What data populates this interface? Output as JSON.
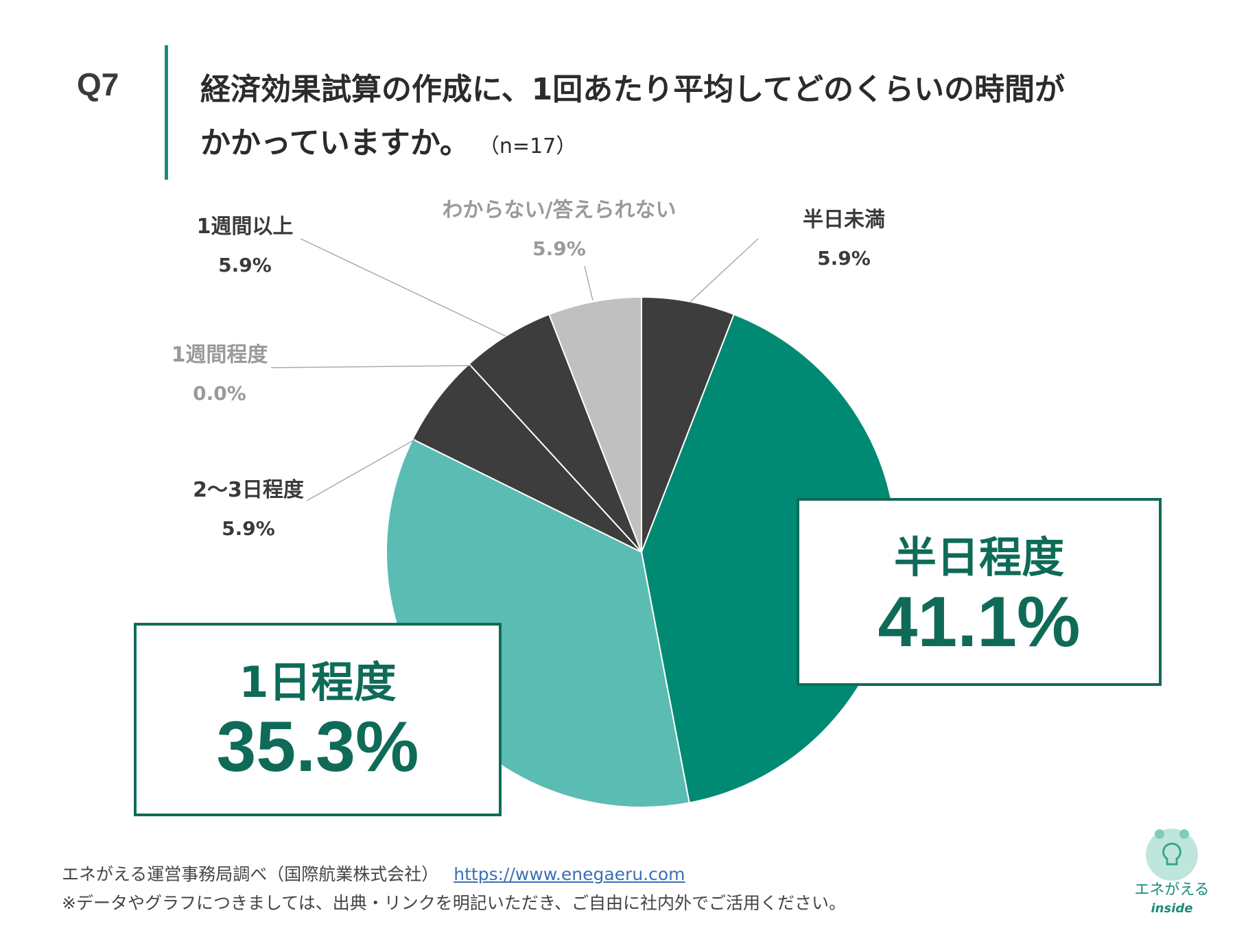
{
  "header": {
    "question_number": "Q7",
    "title_line1": "経済効果試算の作成に、1回あたり平均してどのくらいの時間が",
    "title_line2": "かかっていますか。",
    "sample_size": "（n=17）"
  },
  "colors": {
    "accent": "#1a8c78",
    "dark_green": "#0f6b58",
    "slice_dark": "#3d3d3d",
    "slice_light_gray": "#c0c0c0",
    "slice_green": "#008a73",
    "slice_teal": "#5bbcb3"
  },
  "chart_data": {
    "type": "pie",
    "title": "経済効果試算の作成に、1回あたり平均してどのくらいの時間がかかっていますか。",
    "start": "12 o'clock, clockwise",
    "slices": [
      {
        "key": "half_day_under",
        "label": "半日未満",
        "value": 5.9,
        "value_label": "5.9%",
        "color": "#3d3d3d",
        "label_style": "dark"
      },
      {
        "key": "half_day",
        "label": "半日程度",
        "value": 41.1,
        "value_label": "41.1%",
        "color": "#008a73",
        "label_style": "boxed"
      },
      {
        "key": "one_day",
        "label": "1日程度",
        "value": 35.3,
        "value_label": "35.3%",
        "color": "#5bbcb3",
        "label_style": "boxed"
      },
      {
        "key": "two_three_days",
        "label": "2～3日程度",
        "value": 5.9,
        "value_label": "5.9%",
        "color": "#3d3d3d",
        "label_style": "dark"
      },
      {
        "key": "one_week",
        "label": "1週間程度",
        "value": 0.0,
        "value_label": "0.0%",
        "color": "#cccccc",
        "label_style": "light"
      },
      {
        "key": "over_week",
        "label": "1週間以上",
        "value": 5.9,
        "value_label": "5.9%",
        "color": "#3d3d3d",
        "label_style": "dark"
      },
      {
        "key": "unknown",
        "label": "わからない/答えられない",
        "value": 5.9,
        "value_label": "5.9%",
        "color": "#c0c0c0",
        "label_style": "light"
      }
    ]
  },
  "footer": {
    "source": "エネがえる運営事務局調べ（国際航業株式会社）",
    "url": "https://www.enegaeru.com",
    "note": "※データやグラフにつきましては、出典・リンクを明記いただき、ご自由に社内外でご活用ください。"
  },
  "logo": {
    "brand": "エネがえる",
    "sub": "inside"
  }
}
